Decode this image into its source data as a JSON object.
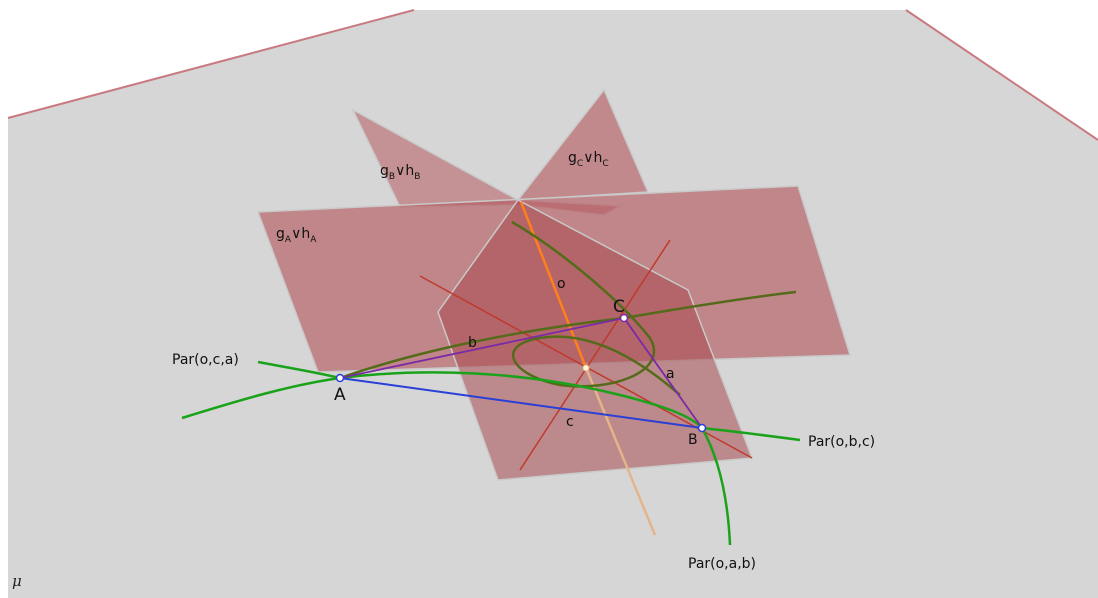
{
  "diagram": {
    "ground_plane_label": "μ",
    "points": {
      "A": "A",
      "B": "B",
      "C": "C"
    },
    "sides": {
      "a": "a",
      "b": "b",
      "c": "c"
    },
    "axis_label": "o",
    "planes": [
      {
        "base": "g",
        "sub1": "A",
        "op": "∨",
        "base2": "h",
        "sub2": "A"
      },
      {
        "base": "g",
        "sub1": "B",
        "op": "∨",
        "base2": "h",
        "sub2": "B"
      },
      {
        "base": "g",
        "sub1": "C",
        "op": "∨",
        "base2": "h",
        "sub2": "C"
      }
    ],
    "parabolas": {
      "oca": "Par(o,c,a)",
      "obc": "Par(o,b,c)",
      "oab": "Par(o,a,b)"
    },
    "colors": {
      "ground": "#d6d6d6",
      "ground_edge": "#c97a80",
      "plane_fill": "#b65a5f",
      "triangle_ab": "#2a3fd6",
      "triangle_bc": "#7a2aa6",
      "axis": "#ff7f1a",
      "parabola": "#1aa31a",
      "parabola_dark": "#556b1a",
      "red_line": "#c0392b"
    }
  }
}
